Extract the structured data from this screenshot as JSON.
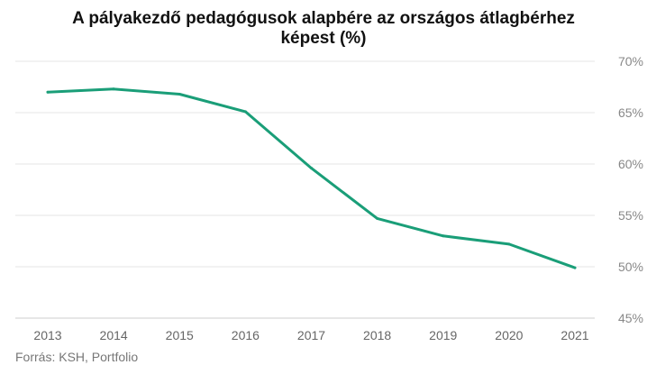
{
  "title_lines": [
    "A pályakezdő pedagógusok alapbére az országos átlagbérhez",
    "képest (%)"
  ],
  "source": "Forrás: KSH, Portfolio",
  "colors": {
    "line": "#1a9e78",
    "grid": "#e6e6e6",
    "axis": "#cccccc",
    "tick_text": "#888888"
  },
  "chart_data": {
    "type": "line",
    "title": "A pályakezdő pedagógusok alapbére az országos átlagbérhez képest (%)",
    "categories": [
      "2013",
      "2014",
      "2015",
      "2016",
      "2017",
      "2018",
      "2019",
      "2020",
      "2021"
    ],
    "series": [
      {
        "values": [
          67.0,
          67.3,
          66.8,
          65.1,
          59.6,
          54.7,
          53.0,
          52.2,
          49.9
        ]
      }
    ],
    "ylim": [
      45,
      70
    ],
    "yticks": [
      45,
      50,
      55,
      60,
      65,
      70
    ],
    "ytick_labels": [
      "45%",
      "50%",
      "55%",
      "60%",
      "65%",
      "70%"
    ],
    "y_axis_position": "right",
    "grid": true,
    "legend": "none"
  }
}
